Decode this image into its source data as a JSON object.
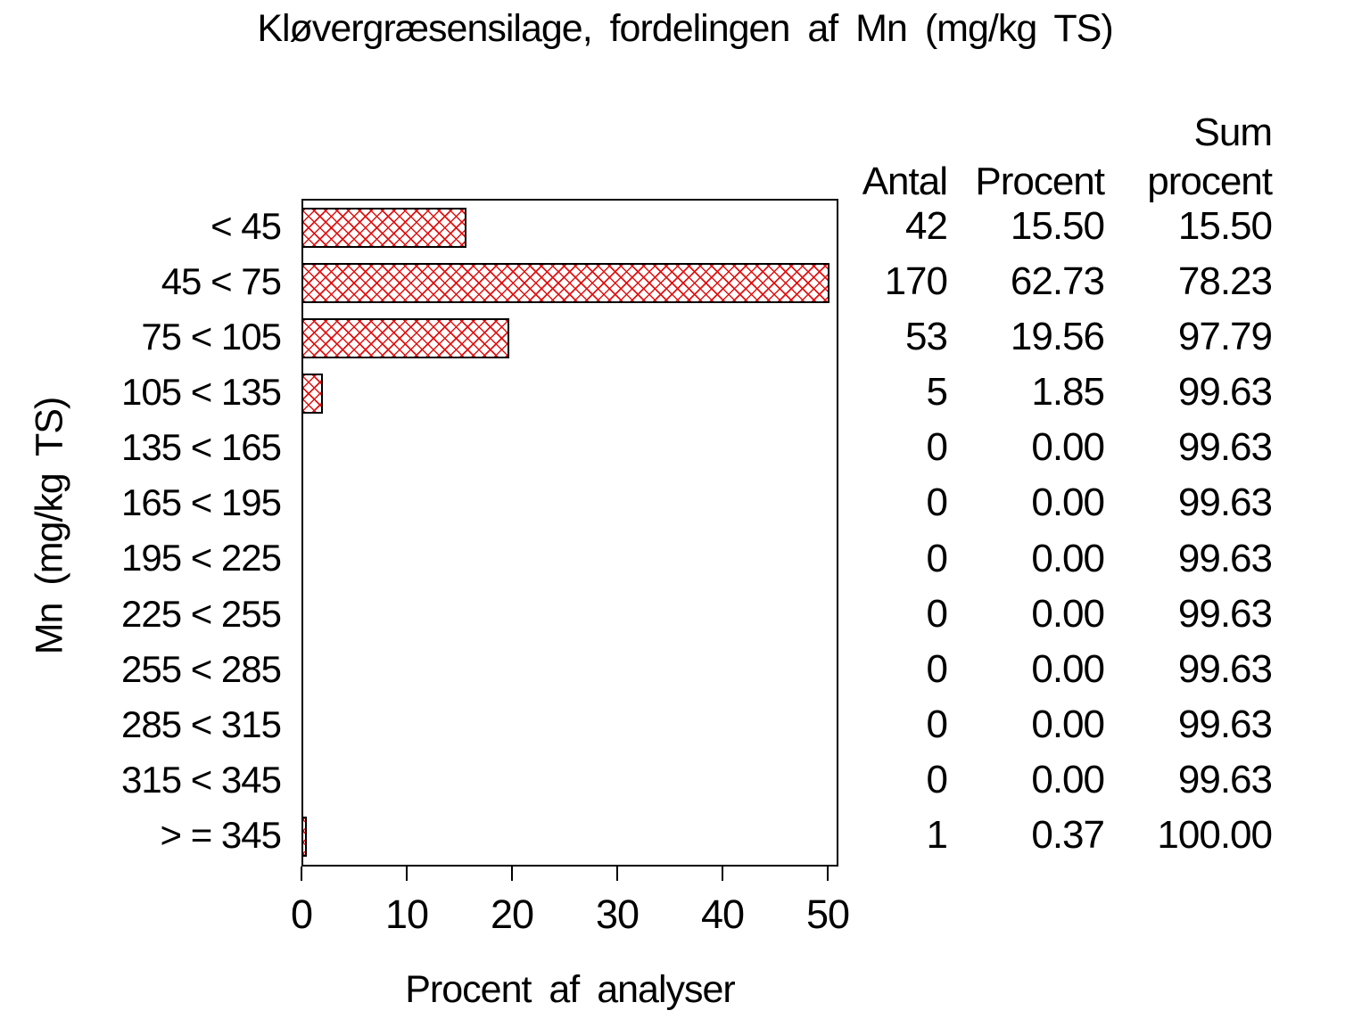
{
  "chart_data": {
    "type": "bar",
    "orientation": "horizontal",
    "title": "Kløvergræsensilage, fordelingen af Mn (mg/kg TS)",
    "xlabel": "Procent af analyser",
    "ylabel": "Mn (mg/kg TS)",
    "categories": [
      "< 45",
      "45 < 75",
      "75 < 105",
      "105 < 135",
      "135 < 165",
      "165 < 195",
      "195 < 225",
      "225 < 255",
      "255 < 285",
      "285 < 315",
      "315 < 345",
      "> = 345"
    ],
    "series": [
      {
        "name": "Antal",
        "values": [
          42,
          170,
          53,
          5,
          0,
          0,
          0,
          0,
          0,
          0,
          0,
          1
        ]
      },
      {
        "name": "Procent",
        "values": [
          15.5,
          62.73,
          19.56,
          1.85,
          0.0,
          0.0,
          0.0,
          0.0,
          0.0,
          0.0,
          0.0,
          0.37
        ]
      },
      {
        "name": "Sum procent",
        "values": [
          15.5,
          78.23,
          97.79,
          99.63,
          99.63,
          99.63,
          99.63,
          99.63,
          99.63,
          99.63,
          99.63,
          100.0
        ]
      }
    ],
    "bar_value_series": "Procent",
    "xlim": [
      0,
      50
    ],
    "xticks": [
      "0",
      "10",
      "20",
      "30",
      "40",
      "50"
    ],
    "grid": false,
    "legend": "none",
    "bar_pattern": "red-crosshatch",
    "bar_color": "#e01212",
    "bar_border_color": "#000000",
    "text_color": "#000000",
    "background_color": "#ffffff"
  },
  "table": {
    "headers": {
      "antal": "Antal",
      "procent": "Procent",
      "sum_line1": "Sum",
      "sum_line2": "procent"
    },
    "rows": [
      {
        "antal": "42",
        "procent": "15.50",
        "sum": "15.50"
      },
      {
        "antal": "170",
        "procent": "62.73",
        "sum": "78.23"
      },
      {
        "antal": "53",
        "procent": "19.56",
        "sum": "97.79"
      },
      {
        "antal": "5",
        "procent": "1.85",
        "sum": "99.63"
      },
      {
        "antal": "0",
        "procent": "0.00",
        "sum": "99.63"
      },
      {
        "antal": "0",
        "procent": "0.00",
        "sum": "99.63"
      },
      {
        "antal": "0",
        "procent": "0.00",
        "sum": "99.63"
      },
      {
        "antal": "0",
        "procent": "0.00",
        "sum": "99.63"
      },
      {
        "antal": "0",
        "procent": "0.00",
        "sum": "99.63"
      },
      {
        "antal": "0",
        "procent": "0.00",
        "sum": "99.63"
      },
      {
        "antal": "0",
        "procent": "0.00",
        "sum": "99.63"
      },
      {
        "antal": "1",
        "procent": "0.37",
        "sum": "100.00"
      }
    ]
  }
}
